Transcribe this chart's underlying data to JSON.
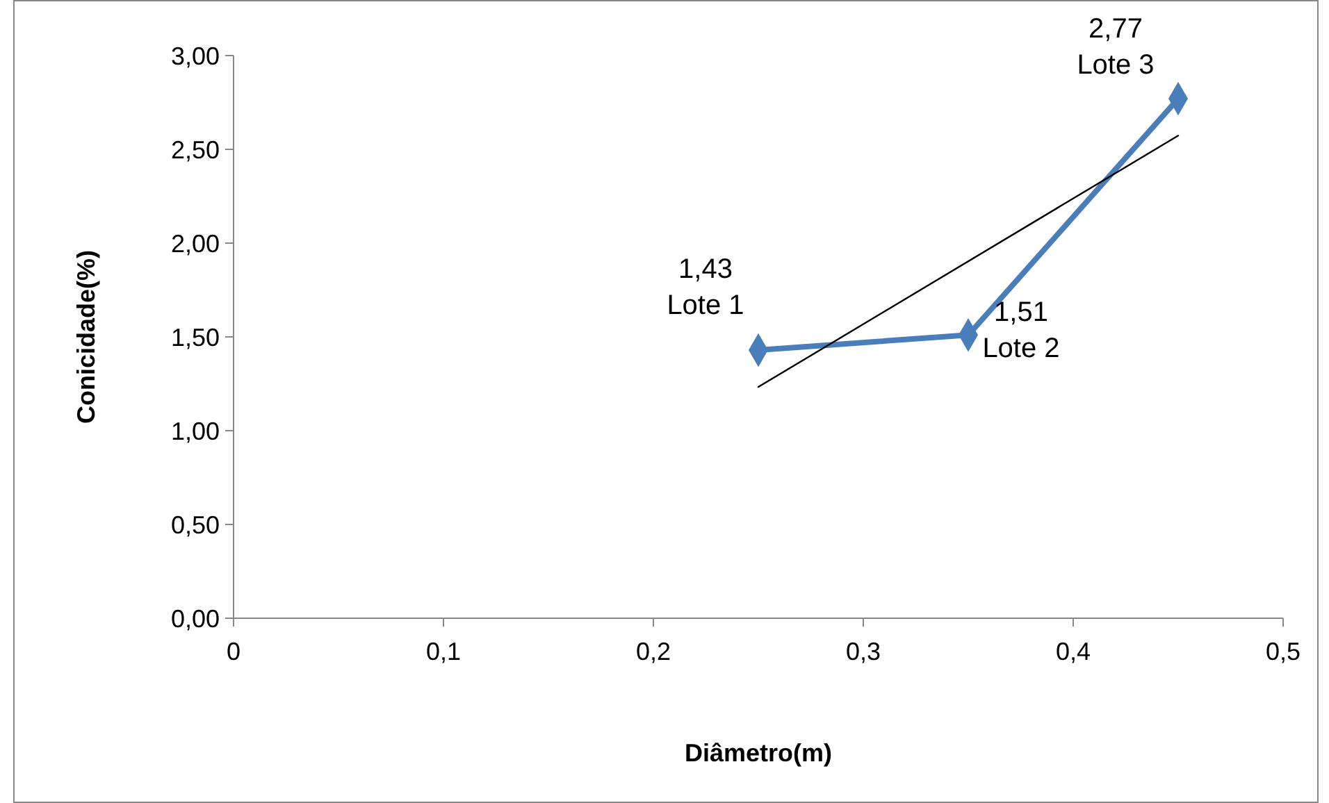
{
  "chart_data": {
    "type": "line",
    "xlabel": "Diâmetro(m)",
    "ylabel": "Conicidade(%)",
    "xlim": [
      0,
      0.5
    ],
    "xticks": [
      {
        "value": 0,
        "label": "0"
      },
      {
        "value": 0.1,
        "label": "0,1"
      },
      {
        "value": 0.2,
        "label": "0,2"
      },
      {
        "value": 0.3,
        "label": "0,3"
      },
      {
        "value": 0.4,
        "label": "0,4"
      },
      {
        "value": 0.5,
        "label": "0,5"
      }
    ],
    "ylim": [
      0,
      3
    ],
    "yticks": [
      {
        "value": 0,
        "label": "0,00"
      },
      {
        "value": 0.5,
        "label": "0,50"
      },
      {
        "value": 1,
        "label": "1,00"
      },
      {
        "value": 1.5,
        "label": "1,50"
      },
      {
        "value": 2,
        "label": "2,00"
      },
      {
        "value": 2.5,
        "label": "2,50"
      },
      {
        "value": 3,
        "label": "3,00"
      }
    ],
    "grid": false,
    "series": [
      {
        "color": "#4a7ebb",
        "x": [
          0.25,
          0.35,
          0.45
        ],
        "values": [
          1.43,
          1.51,
          2.77
        ],
        "marker": "diamond"
      },
      {
        "type": "line",
        "color": "#000000",
        "x": [
          0.25,
          0.45
        ],
        "values": [
          1.233,
          2.573
        ],
        "marker": "none"
      }
    ],
    "annotations": [
      {
        "text": "1,43\nLote 1",
        "x": 0.25,
        "y": 1.43
      },
      {
        "text": "1,51\nLote 2",
        "x": 0.35,
        "y": 1.51
      },
      {
        "text": "2,77\nLote 3",
        "x": 0.45,
        "y": 2.77
      }
    ]
  }
}
